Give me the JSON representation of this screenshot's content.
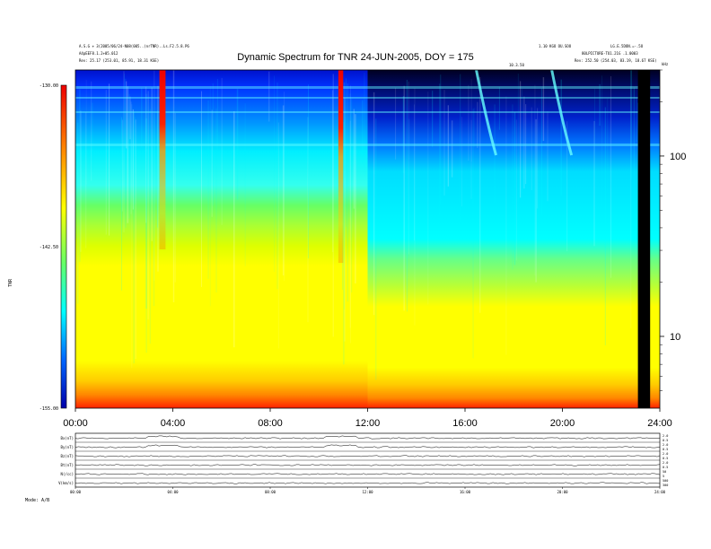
{
  "chart_data": {
    "type": "heatmap",
    "title": "Dynamic Spectrum for TNR 24-JUN-2005, DOY = 175",
    "header_left": [
      "A.S.G + 3(2005/06/24-N08(005..)nrTNR)..Ls.F2.5.8.P6",
      "A4pEEF8.1.2+05.012",
      "Rev:  25.17 (253.01, 85.91, 18.31 KSE)"
    ],
    "header_right_top": [
      "1.10 KGO OU.SOO",
      "LG.E.5DON.=-.5O"
    ],
    "header_right_mid": "80LPICTURE-TU1.21G .1.0003",
    "header_right_rev": "Rev:  252.50 (254.03, 83.19, 18.67 KSE)",
    "header_center": "10.3.50",
    "colorbar": {
      "label": "TNR",
      "ticks": [
        "-130.00",
        "-142.50",
        "-155.00"
      ],
      "min": -155.0,
      "max": -130.0
    },
    "y_right_axis": {
      "label": "kHz",
      "ticks": [
        "100",
        "10"
      ],
      "scale": "log",
      "range_khz": [
        4,
        300
      ]
    },
    "x_axis": {
      "ticks": [
        "00:00",
        "04:00",
        "08:00",
        "12:00",
        "16:00",
        "20:00",
        "24:00"
      ],
      "range_hours": [
        0,
        24
      ]
    },
    "spectrum_features": {
      "bursts_hours": [
        3.45,
        3.7,
        10.8,
        11.0
      ],
      "background_shift_hour": 12.0,
      "data_gap_hours": [
        23.1,
        23.6
      ],
      "type_iii_drifts_hours": [
        17.2,
        20.3
      ]
    },
    "lower_panels": [
      {
        "label": "Bx(nT)",
        "right_ticks": [
          "2.0",
          "0.5"
        ]
      },
      {
        "label": "By(nT)",
        "right_ticks": [
          "2.0",
          "0.5"
        ]
      },
      {
        "label": "Bz(nT)",
        "right_ticks": [
          "2.0",
          "0.5"
        ]
      },
      {
        "label": "Bt(nT)",
        "right_ticks": [
          "2.0",
          "0.5"
        ]
      },
      {
        "label": "N(/cc)",
        "right_ticks": [
          "50",
          "5"
        ]
      },
      {
        "label": "V(km/s)",
        "right_ticks": [
          "500",
          "300"
        ]
      }
    ],
    "lower_x_ticks": [
      "00:00",
      "04:00",
      "08:00",
      "12:00",
      "16:00",
      "20:00",
      "24:00"
    ],
    "footer": "Mode:  A/B"
  }
}
